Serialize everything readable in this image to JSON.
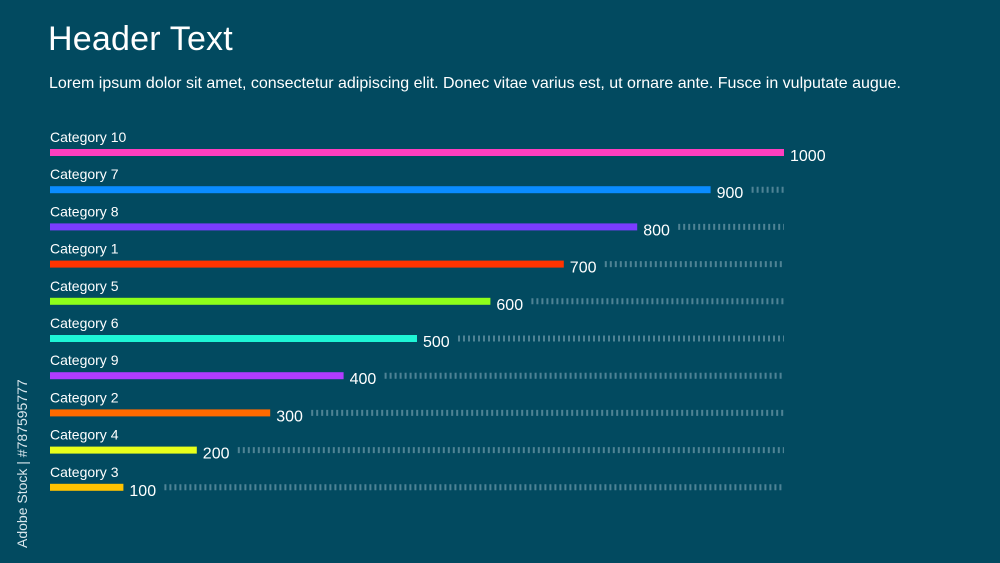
{
  "header": {
    "title": "Header Text",
    "subtitle": "Lorem ipsum dolor sit amet, consectetur adipiscing elit. Donec vitae varius est, ut ornare ante. Fusce in vulputate augue."
  },
  "side_mark": "Adobe Stock | #787595777",
  "chart_data": {
    "type": "bar",
    "orientation": "horizontal",
    "title": "Header Text",
    "xlim": [
      0,
      1000
    ],
    "grid": false,
    "legend": "none",
    "categories": [
      "Category 10",
      "Category 7",
      "Category 8",
      "Category 1",
      "Category 5",
      "Category 6",
      "Category 9",
      "Category 2",
      "Category 4",
      "Category 3"
    ],
    "values": [
      1000,
      900,
      800,
      700,
      600,
      500,
      400,
      300,
      200,
      100
    ],
    "colors": [
      "#ff3fbf",
      "#0a8cff",
      "#7b3cff",
      "#ff3300",
      "#8dff1a",
      "#1ef5d6",
      "#b03cff",
      "#ff6a00",
      "#e8ff1a",
      "#ffc200"
    ],
    "track_color": "#8fb3c2"
  }
}
